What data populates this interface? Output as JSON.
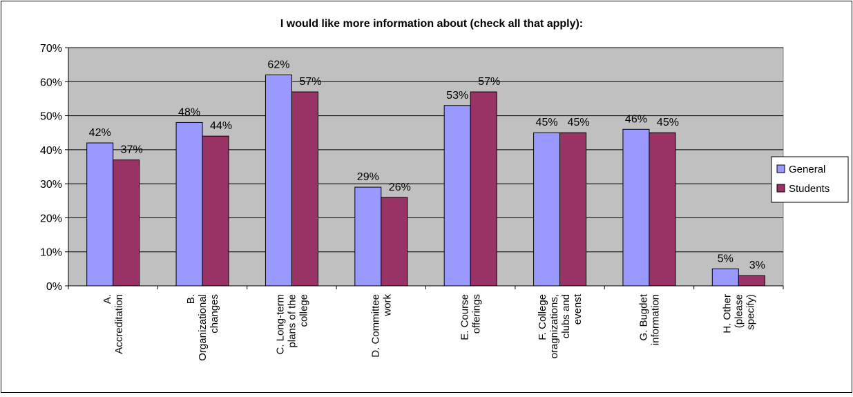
{
  "chart_data": {
    "type": "bar",
    "title": "I would like more information about (check all that apply):",
    "xlabel": "",
    "ylabel": "",
    "ylim": [
      0,
      70
    ],
    "y_tick_step": 10,
    "y_ticks": [
      "0%",
      "10%",
      "20%",
      "30%",
      "40%",
      "50%",
      "60%",
      "70%"
    ],
    "grid": true,
    "legend_position": "right",
    "categories": [
      [
        "A.",
        "Accreditation"
      ],
      [
        "B.",
        "Organizational",
        "changes"
      ],
      [
        "C. Long-term",
        "plans of the",
        "college"
      ],
      [
        "D. Committee",
        "work"
      ],
      [
        "E. Course",
        "offerings"
      ],
      [
        "F. College",
        "oragnizations,",
        "clubs and",
        "evenst"
      ],
      [
        "G. Bugdet",
        "information"
      ],
      [
        "H. Other",
        "(please",
        "specify)"
      ]
    ],
    "series": [
      {
        "name": "General",
        "color": "#9999ff",
        "values": [
          42,
          48,
          62,
          29,
          53,
          45,
          46,
          5
        ],
        "labels": [
          "42%",
          "48%",
          "62%",
          "29%",
          "53%",
          "45%",
          "46%",
          "5%"
        ]
      },
      {
        "name": "Students",
        "color": "#993366",
        "values": [
          37,
          44,
          57,
          26,
          57,
          45,
          45,
          3
        ],
        "labels": [
          "37%",
          "44%",
          "57%",
          "26%",
          "57%",
          "45%",
          "45%",
          "3%"
        ]
      }
    ],
    "plot_background": "#c0c0c0"
  }
}
